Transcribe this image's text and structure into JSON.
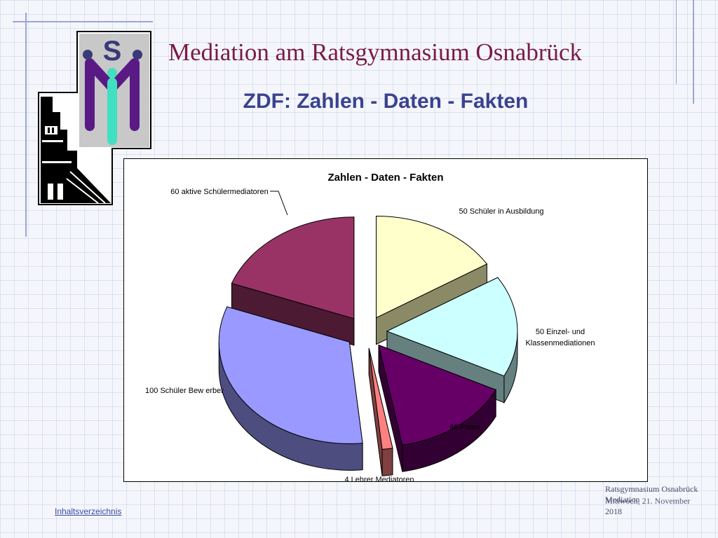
{
  "slide": {
    "title": "Mediation am Ratsgymnasium Osnabrück",
    "subtitle": "ZDF: Zahlen - Daten - Fakten",
    "logo_letter": "S",
    "footer_link": "Inhaltsverzeichnis",
    "footer_line1": "Ratsgymnasium Osnabrück",
    "footer_line2": "Mediation",
    "footer_line3": "Mittwoch, 21. November",
    "footer_line4": "2018"
  },
  "colors": {
    "title": "#7a1a4a",
    "subtitle": "#3a4390",
    "link": "#3b4aa8"
  },
  "chart_data": {
    "type": "pie",
    "title": "Zahlen - Daten - Fakten",
    "three_d": true,
    "exploded": true,
    "slices": [
      {
        "value": 50,
        "label": "50 Schüler in Ausbildung",
        "color": "#ffffcc",
        "side": "#8a8a66"
      },
      {
        "value": 50,
        "label": "50 Einzel- und Klassenmediationen",
        "color": "#ccffff",
        "side": "#668080"
      },
      {
        "value": 46,
        "label": "46 Paten",
        "color": "#660066",
        "side": "#330033"
      },
      {
        "value": 4,
        "label": "4 Lehrer Mediatoren",
        "color": "#ff8080",
        "side": "#804040"
      },
      {
        "value": 100,
        "label": "100 Schüler Bew erber",
        "color": "#9999ff",
        "side": "#4d4d80"
      },
      {
        "value": 60,
        "label": "60 aktive Schülermediatoren",
        "color": "#993366",
        "side": "#4d1a33"
      }
    ]
  }
}
